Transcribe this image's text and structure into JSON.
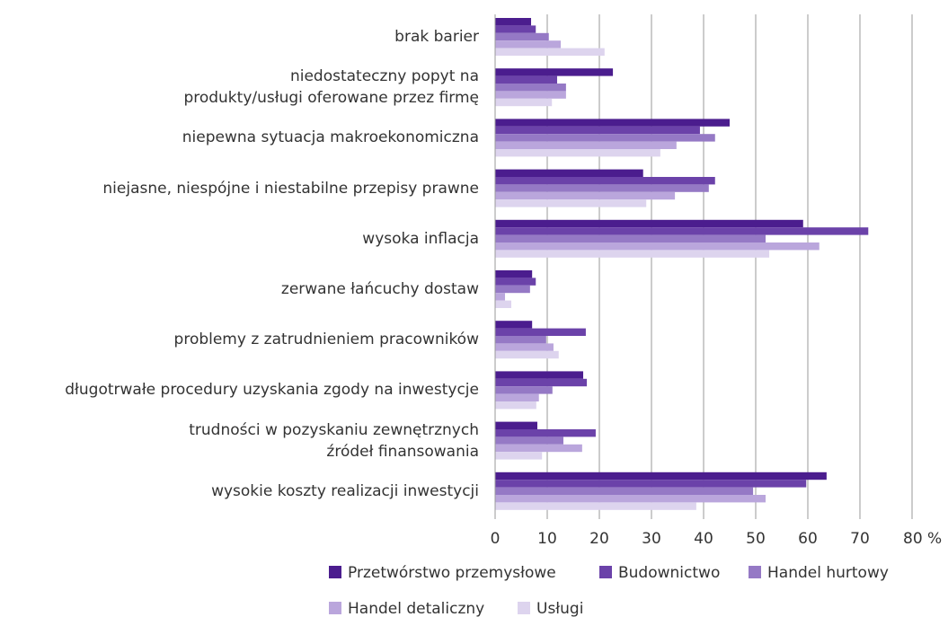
{
  "chart_data": {
    "type": "bar",
    "orientation": "horizontal",
    "categories": [
      "brak barier",
      "niedostateczny popyt na\nprodukty/usługi oferowane przez firmę",
      "niepewna sytuacja makroekonomiczna",
      "niejasne, niespójne i niestabilne przepisy prawne",
      "wysoka inflacja",
      "zerwane łańcuchy dostaw",
      "problemy z zatrudnieniem pracowników",
      "długotrwałe procedury uzyskania zgody na inwestycje",
      "trudności w pozyskaniu zewnętrznych\nźródeł finansowania",
      "wysokie koszty realizacji inwestycji"
    ],
    "series": [
      {
        "name": "Przetwórstwo przemysłowe",
        "color": "#4b1d8e",
        "values": [
          6.9,
          22.6,
          45,
          28.4,
          59.1,
          7.1,
          7.1,
          16.9,
          8.1,
          63.6
        ]
      },
      {
        "name": "Budownictwo",
        "color": "#6b42a9",
        "values": [
          7.8,
          11.9,
          39.3,
          42.2,
          71.6,
          7.8,
          17.4,
          17.6,
          19.3,
          59.7
        ]
      },
      {
        "name": "Handel hurtowy",
        "color": "#9579c5",
        "values": [
          10.3,
          13.6,
          42.2,
          41,
          51.9,
          6.7,
          9.8,
          11,
          13.1,
          49.5
        ]
      },
      {
        "name": "Handel detaliczny",
        "color": "#baa6dc",
        "values": [
          12.6,
          13.6,
          34.8,
          34.5,
          62.2,
          1.9,
          11.2,
          8.4,
          16.7,
          51.9
        ]
      },
      {
        "name": "Usługi",
        "color": "#ddd4ee",
        "values": [
          21,
          10.9,
          31.7,
          29,
          52.6,
          3.1,
          12.2,
          7.9,
          9,
          38.6
        ]
      }
    ],
    "xlim": [
      0,
      80
    ],
    "xticks": [
      0,
      10,
      20,
      30,
      40,
      50,
      60,
      70,
      {
        "value": 80,
        "label": "80 %"
      }
    ],
    "grid": true
  }
}
